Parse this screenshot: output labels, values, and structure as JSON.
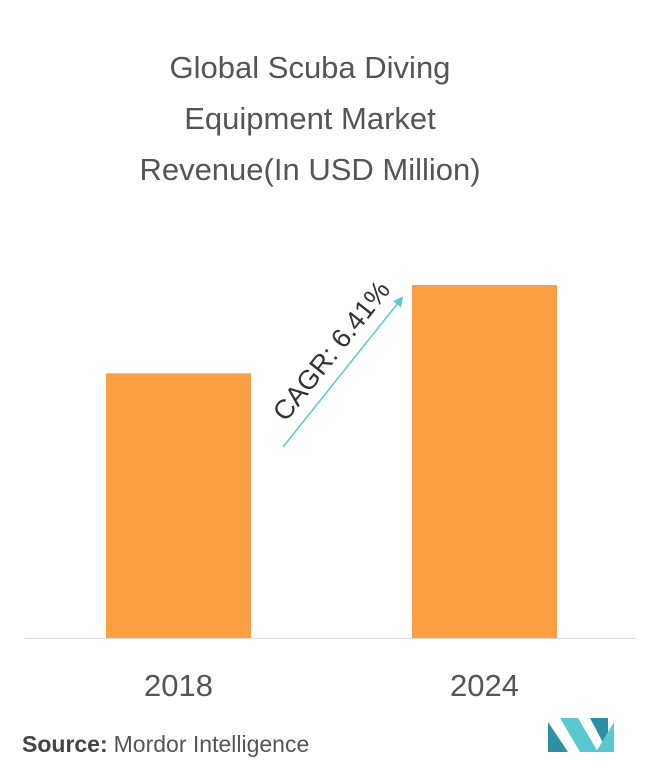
{
  "chart_data": {
    "type": "bar",
    "title": [
      "Global Scuba Diving",
      "Equipment Market",
      "Revenue(In USD Million)"
    ],
    "categories": [
      "2018",
      "2024"
    ],
    "values": [
      75,
      100
    ],
    "color": "#fb9f45",
    "ylim": [
      0,
      100
    ],
    "annotation": "CAGR: 6.41%",
    "source_label": "Source:",
    "source": "Mordor Intelligence"
  }
}
